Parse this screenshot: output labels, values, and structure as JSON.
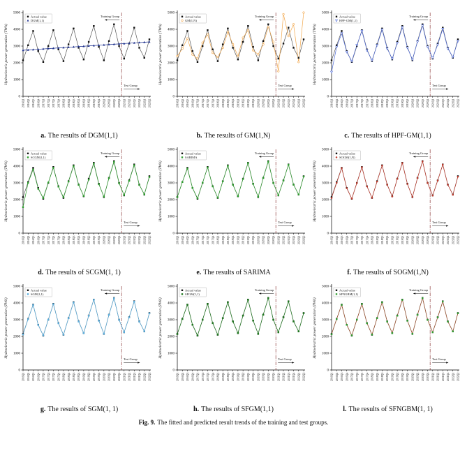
{
  "figure_caption": {
    "prefix": "Fig. 9.",
    "text": "The fitted and predicted result trends of the training and test groups."
  },
  "chart_data": {
    "type": "line",
    "ylabel": "Hydroelectric power generation (TWh)",
    "ylim": [
      0,
      5000
    ],
    "yticks": [
      0,
      1000,
      2000,
      3000,
      4000,
      5000
    ],
    "categories": [
      "2016Q1",
      "2016Q2",
      "2016Q3",
      "2016Q4",
      "2017Q1",
      "2017Q2",
      "2017Q3",
      "2017Q4",
      "2018Q1",
      "2018Q2",
      "2018Q3",
      "2018Q4",
      "2019Q1",
      "2019Q2",
      "2019Q3",
      "2019Q4",
      "2020Q1",
      "2020Q2",
      "2020Q3",
      "2020Q4",
      "2021Q1",
      "2021Q2",
      "2021Q3",
      "2021Q4",
      "2022Q1",
      "2022Q2"
    ],
    "split_index": 19.5,
    "annotations": {
      "training_group": "Training Group",
      "test_group": "Test Group"
    },
    "actual_label": "Actual value",
    "legend_position": "top-left",
    "grid": false,
    "actual_values": [
      2150,
      3050,
      3900,
      2700,
      2050,
      3000,
      3950,
      2800,
      2100,
      3100,
      4050,
      2900,
      2200,
      3250,
      4200,
      2950,
      2150,
      3300,
      4300,
      3000,
      2250,
      3150,
      4100,
      2900,
      2300,
      3400
    ],
    "charts": [
      {
        "label": "a.",
        "caption": "The results of DGM(1,1)",
        "model": "DGM(1,1)",
        "marker": "triangle-up",
        "color": "#1c2f8c",
        "predicted": [
          2750,
          2770,
          2790,
          2810,
          2830,
          2850,
          2870,
          2890,
          2910,
          2930,
          2950,
          2970,
          2990,
          3010,
          3030,
          3050,
          3070,
          3090,
          3110,
          3130,
          3150,
          3170,
          3190,
          3210,
          3230,
          3250
        ]
      },
      {
        "label": "b.",
        "caption": "The results of GM(1,N)",
        "model": "GM(1,N)",
        "marker": "circle-open",
        "color": "#f2a74b",
        "predicted": [
          2400,
          2850,
          3450,
          2500,
          2250,
          3200,
          3700,
          2600,
          2350,
          2900,
          3850,
          3100,
          2400,
          3500,
          3950,
          2750,
          2500,
          3100,
          4150,
          3250,
          1500,
          4900,
          3600,
          4300,
          2050,
          5000
        ]
      },
      {
        "label": "c.",
        "caption": "The results of HPF-GM(1,1)",
        "model": "HPF-GM(1,1)",
        "marker": "triangle-down-open",
        "color": "#4f6bd8",
        "predicted": [
          1450,
          2950,
          3750,
          2650,
          2100,
          3050,
          3900,
          2750,
          2150,
          3050,
          3980,
          2850,
          2250,
          3180,
          4120,
          2900,
          2200,
          3260,
          4220,
          2950,
          2300,
          3080,
          4020,
          2850,
          2350,
          3300
        ]
      },
      {
        "label": "d.",
        "caption": "The results of SCGM(1, 1)",
        "model": "SCGM(1,1)",
        "marker": "square",
        "color": "#2f9e2f",
        "predicted": [
          1550,
          3000,
          3800,
          2650,
          2100,
          3020,
          3900,
          2780,
          2150,
          3080,
          4000,
          2880,
          2220,
          3200,
          4150,
          2920,
          2180,
          3280,
          4250,
          2980,
          2280,
          3120,
          4050,
          2880,
          2320,
          3350
        ]
      },
      {
        "label": "e.",
        "caption": "The results of SARIMA",
        "model": "SARIMA",
        "marker": "square",
        "color": "#2f9e2f",
        "predicted": [
          2150,
          3050,
          3850,
          2700,
          2080,
          3010,
          3920,
          2790,
          2120,
          3090,
          4020,
          2890,
          2210,
          3230,
          4180,
          2940,
          2170,
          3290,
          4270,
          2990,
          2260,
          3140,
          4080,
          2890,
          2310,
          3380
        ]
      },
      {
        "label": "f.",
        "caption": "The results of SOGM(1,N)",
        "model": "SOGM(1,N)",
        "marker": "circle",
        "color": "#c0392b",
        "predicted": [
          2100,
          3000,
          3880,
          2680,
          2060,
          2990,
          3930,
          2790,
          2110,
          3080,
          4030,
          2890,
          2190,
          3240,
          4180,
          2930,
          2160,
          3290,
          4280,
          2990,
          2240,
          3140,
          4090,
          2890,
          2290,
          3370
        ]
      },
      {
        "label": "g.",
        "caption": "The results of SGM(1, 1)",
        "model": "SGM(1,1)",
        "marker": "square",
        "color": "#5aaede",
        "predicted": [
          2120,
          3030,
          3880,
          2690,
          2070,
          3000,
          3930,
          2790,
          2110,
          3090,
          4030,
          2890,
          2200,
          3240,
          4190,
          2940,
          2160,
          3290,
          4280,
          2990,
          2260,
          3140,
          4080,
          2890,
          2310,
          3380
        ]
      },
      {
        "label": "h.",
        "caption": "The results of SFGM(1,1)",
        "model": "SFGM(1,1)",
        "marker": "square",
        "color": "#1f7a1f",
        "predicted": [
          2140,
          3040,
          3890,
          2700,
          2060,
          3000,
          3940,
          2795,
          2110,
          3095,
          4040,
          2895,
          2205,
          3245,
          4190,
          2945,
          2155,
          3295,
          4290,
          2995,
          2255,
          3145,
          4090,
          2895,
          2305,
          3390
        ]
      },
      {
        "label": "l.",
        "caption": "The results of SFNGBM(1, 1)",
        "model": "SFNGBM(1,1)",
        "marker": "square",
        "color": "#2f9e2f",
        "line_color": "#a0522d",
        "predicted": [
          2130,
          3035,
          3885,
          2695,
          2065,
          3005,
          3935,
          2790,
          2115,
          3090,
          4035,
          2890,
          2200,
          3240,
          4185,
          2940,
          2160,
          3290,
          4285,
          2990,
          2255,
          3140,
          4085,
          2890,
          2305,
          3385
        ]
      }
    ]
  }
}
